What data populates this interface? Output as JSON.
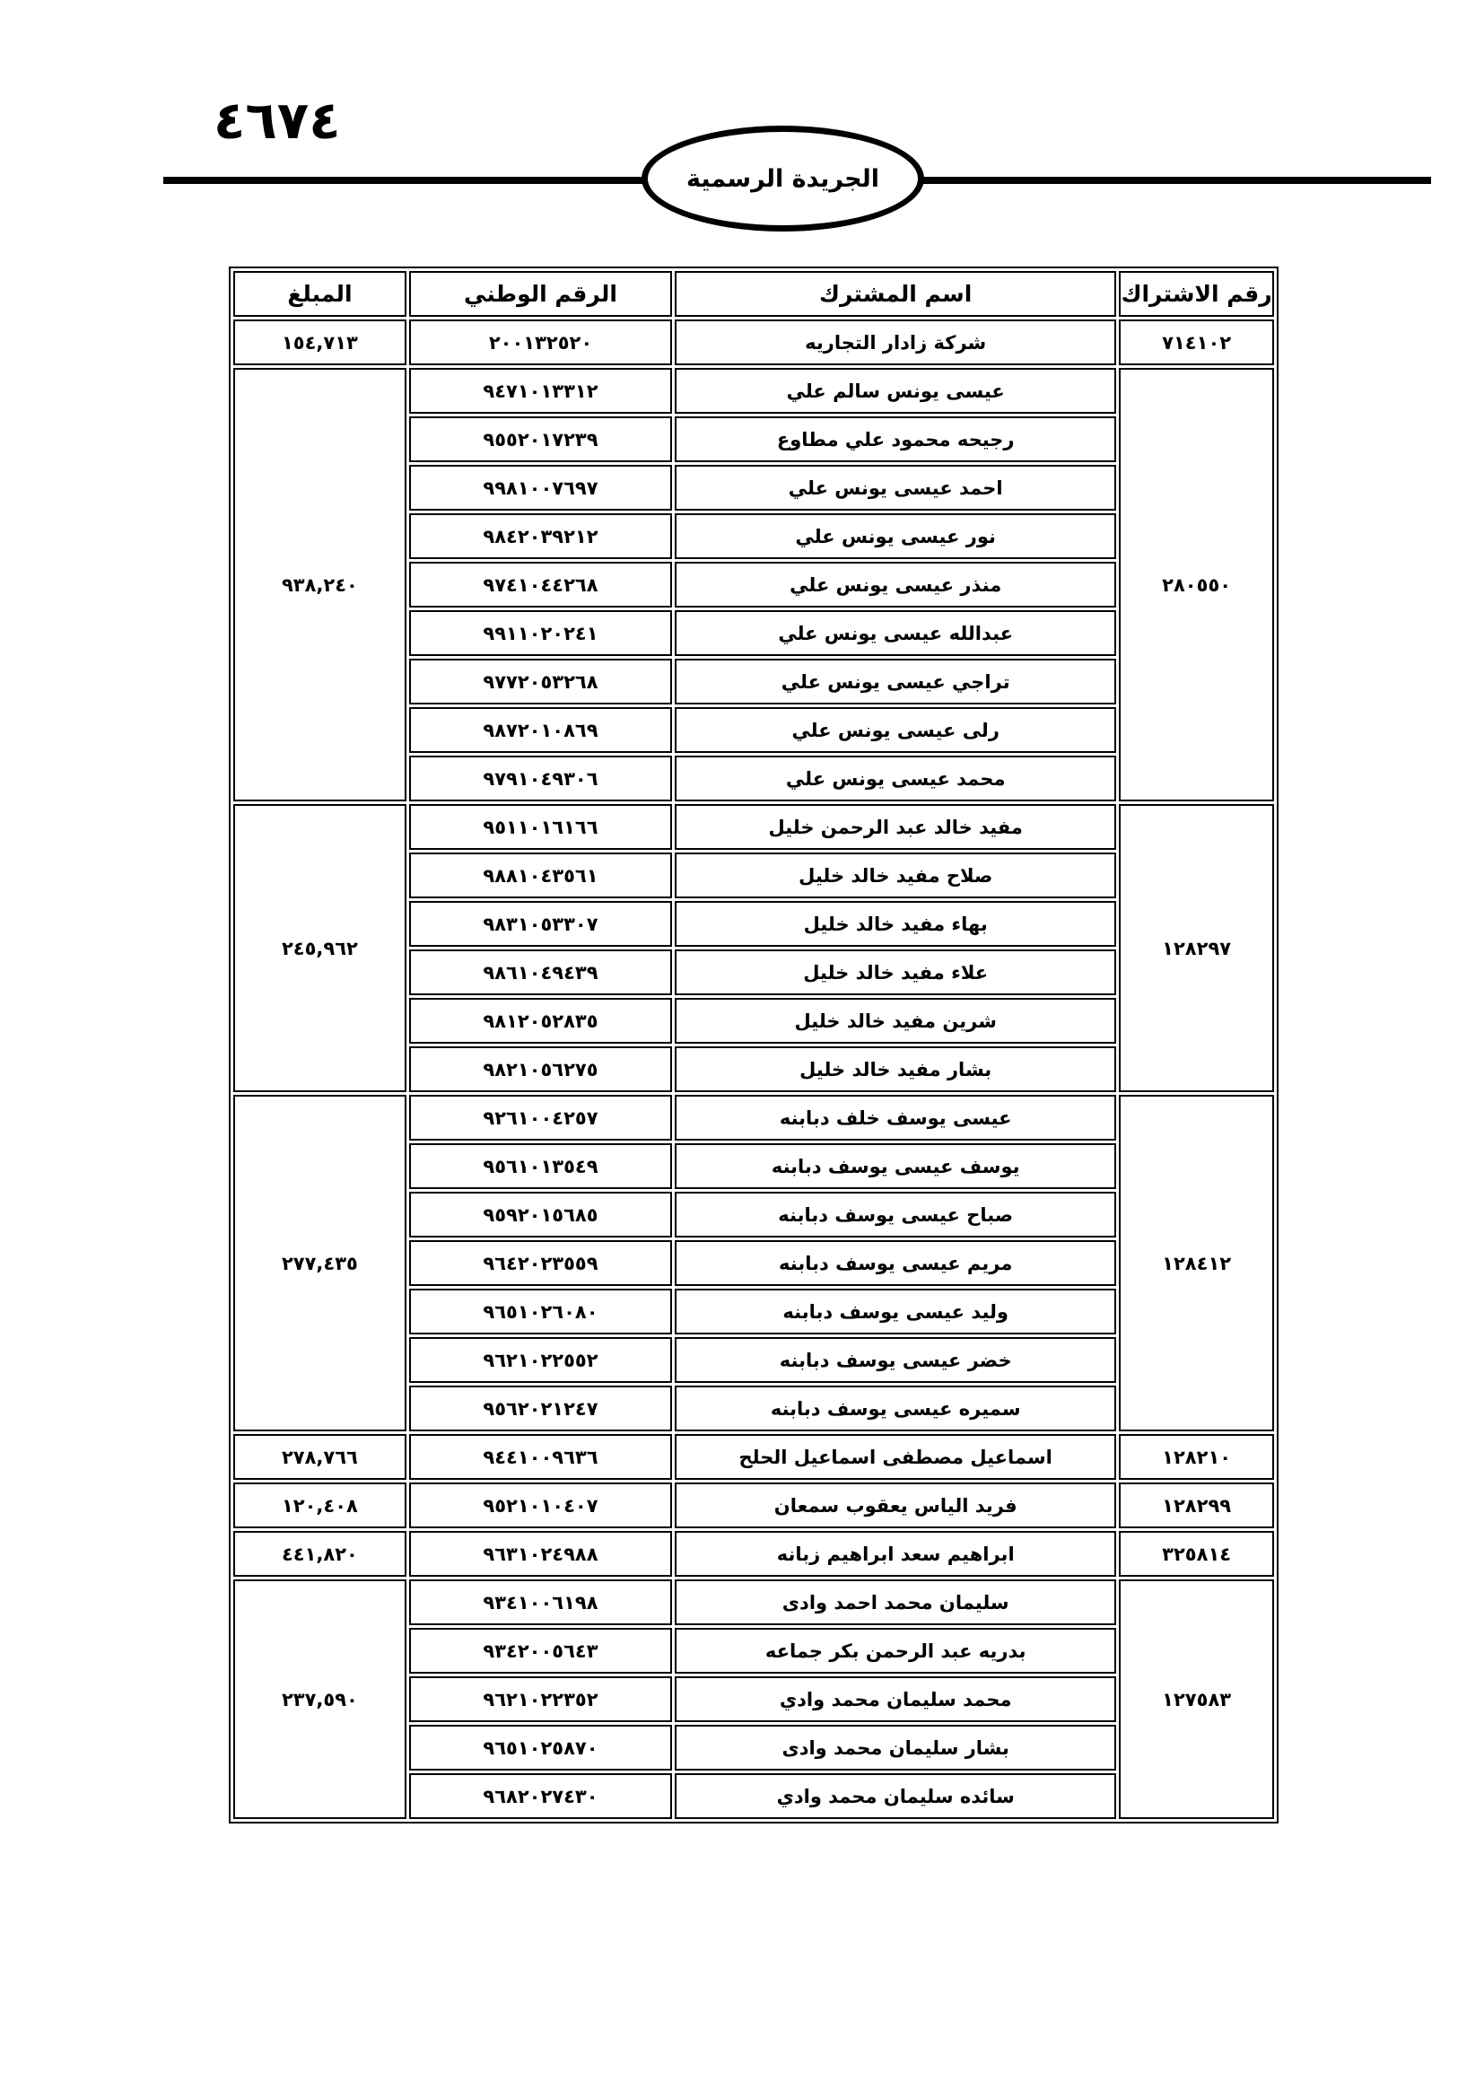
{
  "page_number": "٤٦٧٤",
  "masthead": "الجريدة الرسمية",
  "table": {
    "headers": {
      "subscription": "رقم الاشتراك",
      "name": "اسم المشترك",
      "national_id": "الرقم الوطني",
      "amount": "المبلغ"
    },
    "groups": [
      {
        "subscription": "٧١٤١٠٢",
        "amount": "١٥٤,٧١٣",
        "members": [
          {
            "name": "شركة زادار التجاريه",
            "national_id": "٢٠٠١٣٢٥٢٠"
          }
        ]
      },
      {
        "subscription": "٢٨٠٥٥٠",
        "amount": "٩٣٨,٢٤٠",
        "members": [
          {
            "name": "عيسى يونس سالم علي",
            "national_id": "٩٤٧١٠١٣٣١٢"
          },
          {
            "name": "رجيحه محمود علي مطاوع",
            "national_id": "٩٥٥٢٠١٧٢٣٩"
          },
          {
            "name": "احمد عيسى يونس علي",
            "national_id": "٩٩٨١٠٠٧٦٩٧"
          },
          {
            "name": "نور عيسى يونس علي",
            "national_id": "٩٨٤٢٠٣٩٢١٢"
          },
          {
            "name": "منذر عيسى يونس علي",
            "national_id": "٩٧٤١٠٤٤٢٦٨"
          },
          {
            "name": "عبدالله عيسى يونس علي",
            "national_id": "٩٩١١٠٢٠٢٤١"
          },
          {
            "name": "تراجي عيسى يونس علي",
            "national_id": "٩٧٧٢٠٥٣٢٦٨"
          },
          {
            "name": "رلى عيسى يونس علي",
            "national_id": "٩٨٧٢٠١٠٨٦٩"
          },
          {
            "name": "محمد عيسى يونس علي",
            "national_id": "٩٧٩١٠٤٩٣٠٦"
          }
        ]
      },
      {
        "subscription": "١٢٨٢٩٧",
        "amount": "٢٤٥,٩٦٢",
        "members": [
          {
            "name": "مفيد خالد عبد الرحمن خليل",
            "national_id": "٩٥١١٠١٦١٦٦"
          },
          {
            "name": "صلاح مفيد خالد خليل",
            "national_id": "٩٨٨١٠٤٣٥٦١"
          },
          {
            "name": "بهاء مفيد خالد خليل",
            "national_id": "٩٨٣١٠٥٣٣٠٧"
          },
          {
            "name": "علاء مفيد خالد خليل",
            "national_id": "٩٨٦١٠٤٩٤٣٩"
          },
          {
            "name": "شرين مفيد خالد خليل",
            "national_id": "٩٨١٢٠٥٢٨٣٥"
          },
          {
            "name": "بشار مفيد خالد خليل",
            "national_id": "٩٨٢١٠٥٦٢٧٥"
          }
        ]
      },
      {
        "subscription": "١٢٨٤١٢",
        "amount": "٢٧٧,٤٣٥",
        "members": [
          {
            "name": "عيسى يوسف خلف دبابنه",
            "national_id": "٩٢٦١٠٠٤٢٥٧"
          },
          {
            "name": "يوسف عيسى يوسف دبابنه",
            "national_id": "٩٥٦١٠١٣٥٤٩"
          },
          {
            "name": "صباح عيسى يوسف دبابنه",
            "national_id": "٩٥٩٢٠١٥٦٨٥"
          },
          {
            "name": "مريم عيسى يوسف دبابنه",
            "national_id": "٩٦٤٢٠٢٣٥٥٩"
          },
          {
            "name": "وليد عيسى يوسف دبابنه",
            "national_id": "٩٦٥١٠٢٦٠٨٠"
          },
          {
            "name": "خضر عيسى يوسف دبابنه",
            "national_id": "٩٦٢١٠٢٢٥٥٢"
          },
          {
            "name": "سميره عيسى يوسف دبابنه",
            "national_id": "٩٥٦٢٠٢١٢٤٧"
          }
        ]
      },
      {
        "subscription": "١٢٨٢١٠",
        "amount": "٢٧٨,٧٦٦",
        "members": [
          {
            "name": "اسماعيل مصطفى اسماعيل الحلح",
            "national_id": "٩٤٤١٠٠٩٦٣٦"
          }
        ]
      },
      {
        "subscription": "١٢٨٢٩٩",
        "amount": "١٢٠,٤٠٨",
        "members": [
          {
            "name": "فريد الياس يعقوب سمعان",
            "national_id": "٩٥٢١٠١٠٤٠٧"
          }
        ]
      },
      {
        "subscription": "٣٢٥٨١٤",
        "amount": "٤٤١,٨٢٠",
        "members": [
          {
            "name": "ابراهيم سعد ابراهيم زبانه",
            "national_id": "٩٦٣١٠٢٤٩٨٨"
          }
        ]
      },
      {
        "subscription": "١٢٧٥٨٣",
        "amount": "٢٣٧,٥٩٠",
        "members": [
          {
            "name": "سليمان محمد احمد وادى",
            "national_id": "٩٣٤١٠٠٦١٩٨"
          },
          {
            "name": "بدريه عبد الرحمن بكر جماعه",
            "national_id": "٩٣٤٢٠٠٥٦٤٣"
          },
          {
            "name": "محمد سليمان محمد وادي",
            "national_id": "٩٦٢١٠٢٢٣٥٢"
          },
          {
            "name": "بشار سليمان محمد وادى",
            "national_id": "٩٦٥١٠٢٥٨٧٠"
          },
          {
            "name": "سائده سليمان محمد وادي",
            "national_id": "٩٦٨٢٠٢٧٤٣٠"
          }
        ]
      }
    ]
  }
}
